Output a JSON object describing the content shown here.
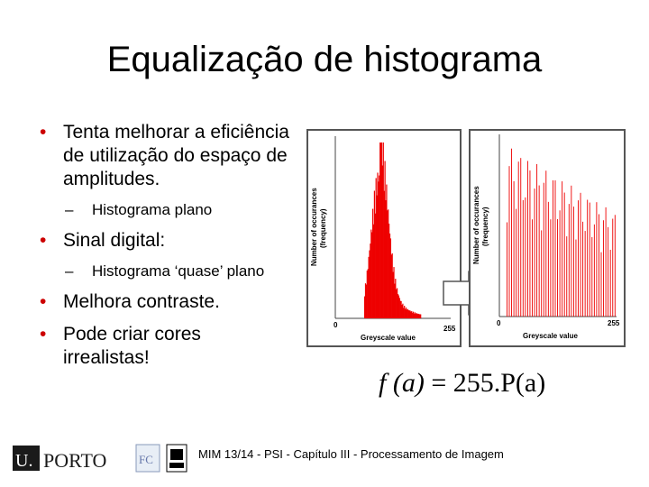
{
  "slide": {
    "title": "Equalização de histograma",
    "bullets": [
      {
        "text": "Tenta melhorar a eficiência de utilização do espaço de amplitudes.",
        "sub": [
          "Histograma plano"
        ]
      },
      {
        "text": "Sinal digital:",
        "sub": [
          "Histograma ‘quase’ plano"
        ]
      },
      {
        "text": "Melhora contraste.",
        "sub": []
      },
      {
        "text": "Pode criar cores irrealistas!",
        "sub": []
      }
    ],
    "bullet_glyph": "•",
    "dash_glyph": "–"
  },
  "histograms": {
    "ylabel_line1": "Number of occurances",
    "ylabel_line2": "(frequency)",
    "xlabel": "Greyscale value",
    "x_min_label": "0",
    "x_max_label": "255",
    "bar_color": "#ee0000"
  },
  "formula": {
    "lhs": "f (a)",
    "eq": "=",
    "rhs": "255.P(a)"
  },
  "footer": {
    "text": "MIM 13/14 - PSI - Capítulo III - Processamento de Imagem",
    "logo_u": "U.",
    "logo_porto": "PORTO",
    "logo_fc": "FC"
  }
}
